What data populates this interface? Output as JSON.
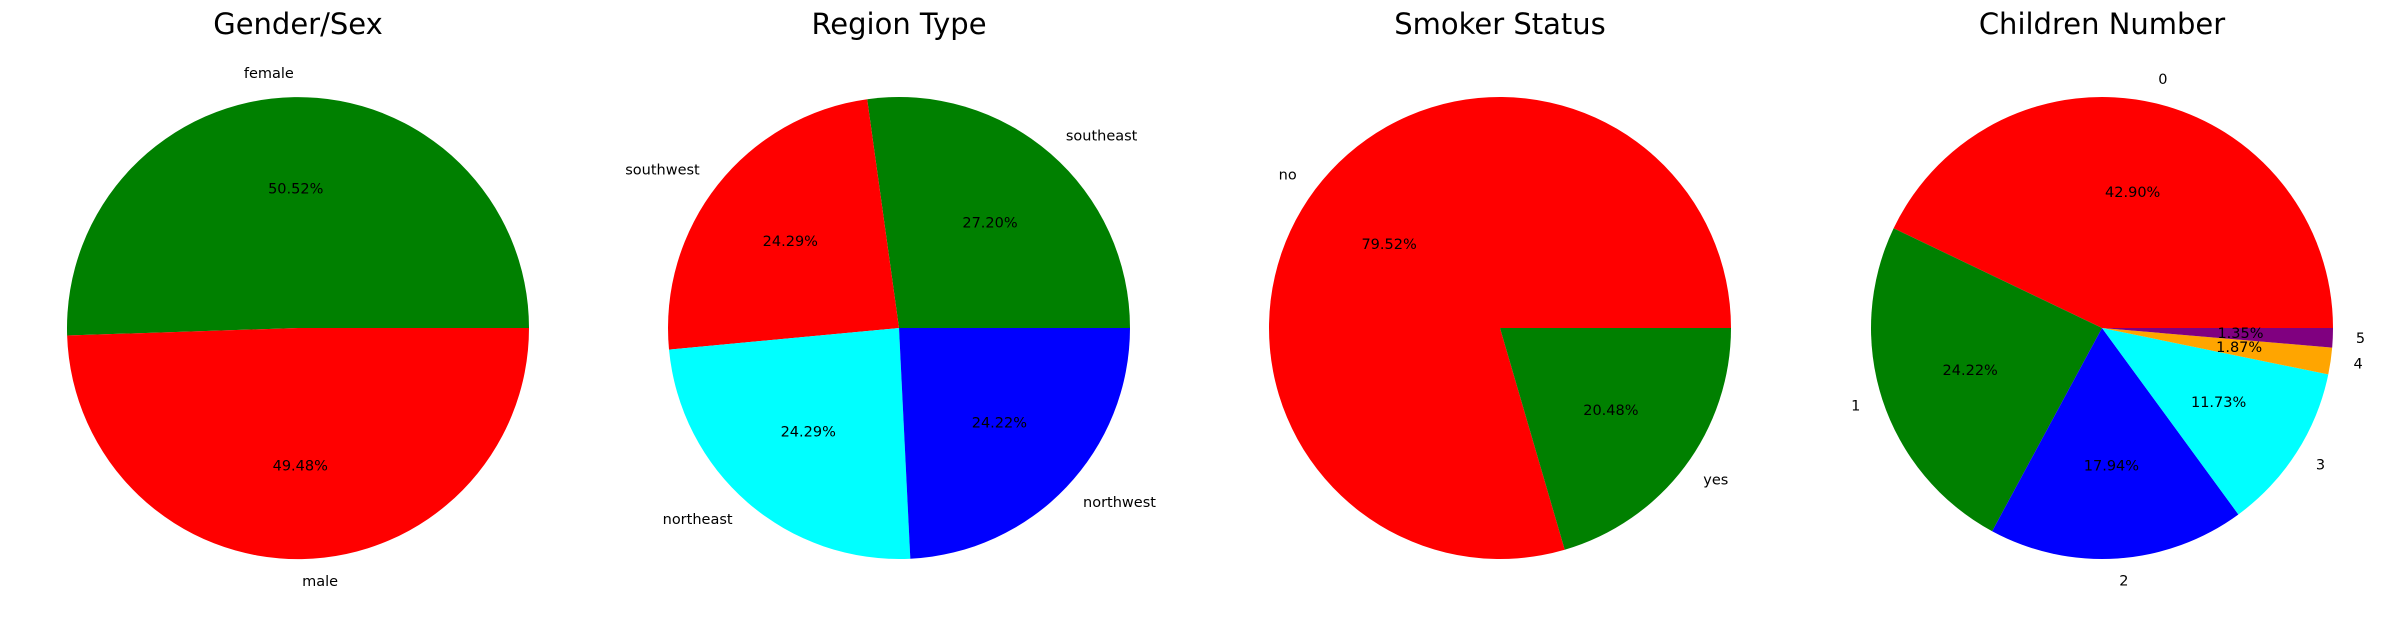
{
  "chart_data": [
    {
      "type": "pie",
      "title": "Gender/Sex",
      "slices": [
        {
          "label": "female",
          "value": 50.52,
          "pct_label": "50.52%",
          "color": "#008000"
        },
        {
          "label": "male",
          "value": 49.48,
          "pct_label": "49.48%",
          "color": "#ff0000"
        }
      ]
    },
    {
      "type": "pie",
      "title": "Region Type",
      "slices": [
        {
          "label": "southeast",
          "value": 27.2,
          "pct_label": "27.20%",
          "color": "#008000"
        },
        {
          "label": "southwest",
          "value": 24.29,
          "pct_label": "24.29%",
          "color": "#ff0000"
        },
        {
          "label": "northeast",
          "value": 24.29,
          "pct_label": "24.29%",
          "color": "#00ffff"
        },
        {
          "label": "northwest",
          "value": 24.22,
          "pct_label": "24.22%",
          "color": "#0000ff"
        }
      ]
    },
    {
      "type": "pie",
      "title": "Smoker Status",
      "slices": [
        {
          "label": "no",
          "value": 79.52,
          "pct_label": "79.52%",
          "color": "#ff0000"
        },
        {
          "label": "yes",
          "value": 20.48,
          "pct_label": "20.48%",
          "color": "#008000"
        }
      ]
    },
    {
      "type": "pie",
      "title": "Children Number",
      "slices": [
        {
          "label": "0",
          "value": 42.9,
          "pct_label": "42.90%",
          "color": "#ff0000"
        },
        {
          "label": "1",
          "value": 24.22,
          "pct_label": "24.22%",
          "color": "#008000"
        },
        {
          "label": "2",
          "value": 17.94,
          "pct_label": "17.94%",
          "color": "#0000ff"
        },
        {
          "label": "3",
          "value": 11.73,
          "pct_label": "11.73%",
          "color": "#00ffff"
        },
        {
          "label": "4",
          "value": 1.87,
          "pct_label": "1.87%",
          "color": "#ffa500"
        },
        {
          "label": "5",
          "value": 1.35,
          "pct_label": "1.35%",
          "color": "#800080"
        }
      ]
    }
  ]
}
